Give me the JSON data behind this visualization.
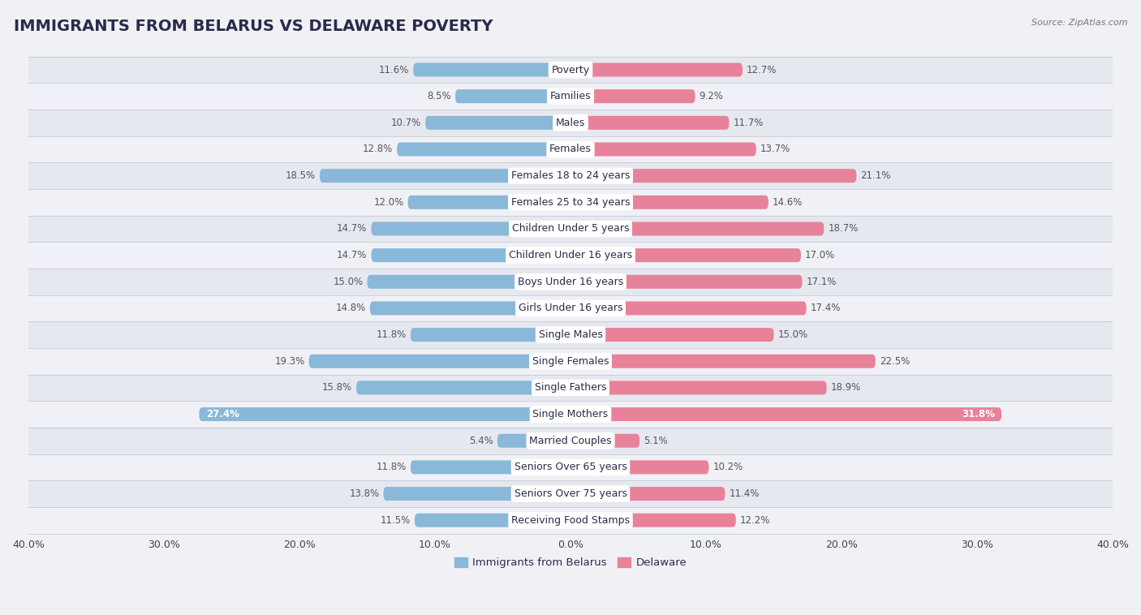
{
  "title": "IMMIGRANTS FROM BELARUS VS DELAWARE POVERTY",
  "source": "Source: ZipAtlas.com",
  "categories": [
    "Poverty",
    "Families",
    "Males",
    "Females",
    "Females 18 to 24 years",
    "Females 25 to 34 years",
    "Children Under 5 years",
    "Children Under 16 years",
    "Boys Under 16 years",
    "Girls Under 16 years",
    "Single Males",
    "Single Females",
    "Single Fathers",
    "Single Mothers",
    "Married Couples",
    "Seniors Over 65 years",
    "Seniors Over 75 years",
    "Receiving Food Stamps"
  ],
  "belarus_values": [
    11.6,
    8.5,
    10.7,
    12.8,
    18.5,
    12.0,
    14.7,
    14.7,
    15.0,
    14.8,
    11.8,
    19.3,
    15.8,
    27.4,
    5.4,
    11.8,
    13.8,
    11.5
  ],
  "delaware_values": [
    12.7,
    9.2,
    11.7,
    13.7,
    21.1,
    14.6,
    18.7,
    17.0,
    17.1,
    17.4,
    15.0,
    22.5,
    18.9,
    31.8,
    5.1,
    10.2,
    11.4,
    12.2
  ],
  "belarus_color": "#89b8d8",
  "delaware_color": "#e8829a",
  "row_colors": [
    "#e8eaf0",
    "#f5f6fa"
  ],
  "background_color": "#f0f1f5",
  "bar_row_bg_odd": "#e6e8f0",
  "bar_row_bg_even": "#f0f1f6",
  "xlim": 40.0,
  "legend_labels": [
    "Immigrants from Belarus",
    "Delaware"
  ],
  "bar_height": 0.52,
  "title_fontsize": 14,
  "label_fontsize": 9,
  "value_fontsize": 8.5,
  "axis_label_fontsize": 9
}
